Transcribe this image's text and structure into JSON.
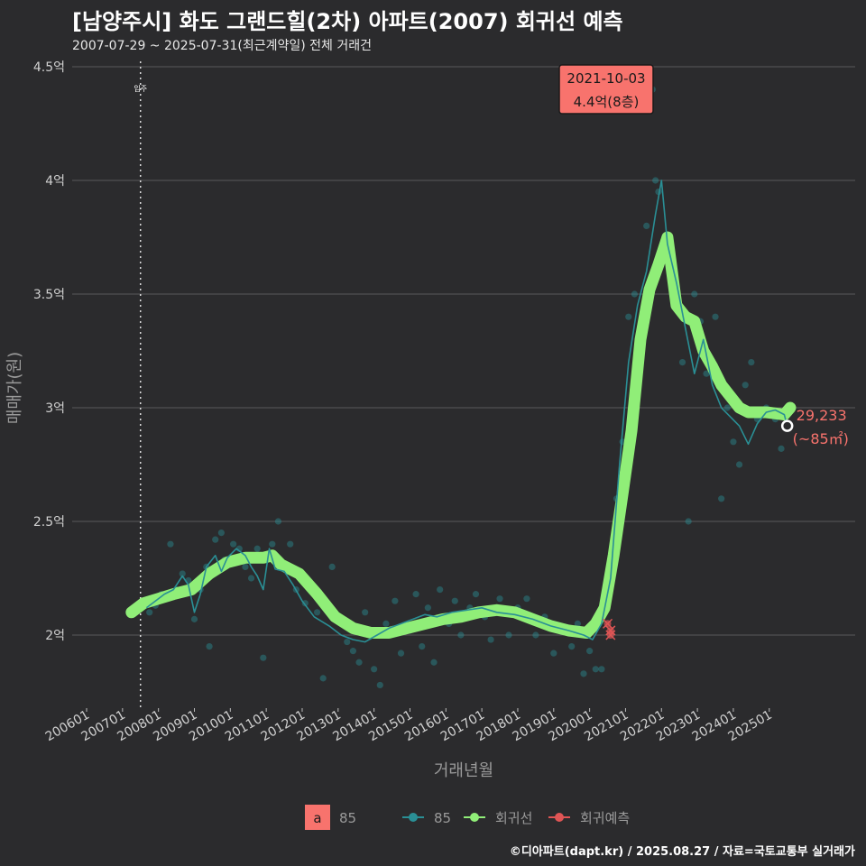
{
  "header": {
    "title": "[남양주시] 화도 그랜드힐(2차) 아파트(2007) 회귀선 예측",
    "subtitle": "2007-07-29 ~ 2025-07-31(최근계약일) 전체 거래건"
  },
  "caption": "©디아파트(dapt.kr) / 2025.08.27 / 자료=국토교통부 실거래가",
  "colors": {
    "background": "#2b2b2d",
    "grid": "#5a5a5c",
    "series_85": "#2a8f95",
    "regression": "#90ee78",
    "forecast": "#e05555",
    "annotation_fill": "#f8736d"
  },
  "annotations": {
    "peak_date": "2021-10-03",
    "peak_price": "4.4억(8층)",
    "last_price": "29,233",
    "last_area": "(~85㎡)",
    "movein_label": "입주"
  },
  "legend": {
    "box_letter": "a",
    "box_label": "85",
    "items": [
      {
        "label": "85",
        "color": "#2a8f95"
      },
      {
        "label": "회귀선",
        "color": "#90ee78"
      },
      {
        "label": "회귀예측",
        "color": "#e05555"
      }
    ]
  },
  "chart_data": {
    "type": "line",
    "title": "[남양주시] 화도 그랜드힐(2차) 아파트(2007) 회귀선 예측",
    "xlabel": "거래년월",
    "ylabel": "매매가(원)",
    "x_range": [
      "2006-01",
      "2025-08"
    ],
    "ylim": [
      1.7,
      4.5
    ],
    "y_ticks": [
      2,
      2.5,
      3,
      3.5,
      4,
      4.5
    ],
    "y_tick_labels": [
      "2억",
      "2.5억",
      "3억",
      "3.5억",
      "4억",
      "4.5억"
    ],
    "x_ticks": [
      "2006-01",
      "2007-01",
      "2008-01",
      "2009-01",
      "2010-01",
      "2011-01",
      "2012-01",
      "2013-01",
      "2014-01",
      "2015-01",
      "2016-01",
      "2017-01",
      "2018-01",
      "2019-01",
      "2020-01",
      "2021-01",
      "2022-01",
      "2023-01",
      "2024-01",
      "2025-01"
    ],
    "x_tick_labels": [
      "200601",
      "200701",
      "200801",
      "200901",
      "201001",
      "201101",
      "201201",
      "201301",
      "201401",
      "201501",
      "201601",
      "201701",
      "201801",
      "201901",
      "202001",
      "202101",
      "202201",
      "202301",
      "202401",
      "202501"
    ],
    "grid": true,
    "legend_position": "bottom",
    "movein_date": "2007-07",
    "series": [
      {
        "name": "85",
        "kind": "monthly-average-line",
        "points": [
          [
            "2007-09",
            2.12
          ],
          [
            "2007-12",
            2.15
          ],
          [
            "2008-03",
            2.18
          ],
          [
            "2008-06",
            2.2
          ],
          [
            "2008-09",
            2.26
          ],
          [
            "2008-11",
            2.22
          ],
          [
            "2009-01",
            2.1
          ],
          [
            "2009-03",
            2.18
          ],
          [
            "2009-05",
            2.3
          ],
          [
            "2009-08",
            2.35
          ],
          [
            "2009-10",
            2.28
          ],
          [
            "2009-12",
            2.34
          ],
          [
            "2010-03",
            2.38
          ],
          [
            "2010-06",
            2.35
          ],
          [
            "2010-08",
            2.3
          ],
          [
            "2010-10",
            2.26
          ],
          [
            "2010-12",
            2.2
          ],
          [
            "2011-02",
            2.38
          ],
          [
            "2011-04",
            2.29
          ],
          [
            "2011-07",
            2.28
          ],
          [
            "2011-10",
            2.22
          ],
          [
            "2012-01",
            2.15
          ],
          [
            "2012-05",
            2.08
          ],
          [
            "2012-10",
            2.04
          ],
          [
            "2013-02",
            2.0
          ],
          [
            "2013-06",
            1.98
          ],
          [
            "2013-10",
            1.97
          ],
          [
            "2014-02",
            2.0
          ],
          [
            "2014-06",
            2.03
          ],
          [
            "2014-10",
            2.05
          ],
          [
            "2015-02",
            2.07
          ],
          [
            "2015-06",
            2.09
          ],
          [
            "2015-10",
            2.08
          ],
          [
            "2016-03",
            2.1
          ],
          [
            "2016-08",
            2.11
          ],
          [
            "2017-01",
            2.12
          ],
          [
            "2017-06",
            2.1
          ],
          [
            "2017-12",
            2.09
          ],
          [
            "2018-06",
            2.07
          ],
          [
            "2018-12",
            2.04
          ],
          [
            "2019-06",
            2.02
          ],
          [
            "2019-11",
            2.0
          ],
          [
            "2020-02",
            1.98
          ],
          [
            "2020-05",
            2.05
          ],
          [
            "2020-08",
            2.25
          ],
          [
            "2020-11",
            2.75
          ],
          [
            "2021-02",
            3.2
          ],
          [
            "2021-05",
            3.45
          ],
          [
            "2021-08",
            3.6
          ],
          [
            "2021-11",
            3.85
          ],
          [
            "2022-01",
            4.0
          ],
          [
            "2022-03",
            3.72
          ],
          [
            "2022-06",
            3.55
          ],
          [
            "2022-09",
            3.35
          ],
          [
            "2022-12",
            3.15
          ],
          [
            "2023-03",
            3.3
          ],
          [
            "2023-06",
            3.1
          ],
          [
            "2023-09",
            3.0
          ],
          [
            "2023-12",
            2.96
          ],
          [
            "2024-03",
            2.92
          ],
          [
            "2024-06",
            2.84
          ],
          [
            "2024-09",
            2.93
          ],
          [
            "2024-12",
            2.98
          ],
          [
            "2025-03",
            2.99
          ],
          [
            "2025-06",
            2.97
          ],
          [
            "2025-07",
            2.92
          ]
        ]
      },
      {
        "name": "회귀선",
        "kind": "regression",
        "points": [
          [
            "2007-04",
            2.1
          ],
          [
            "2007-08",
            2.14
          ],
          [
            "2008-01",
            2.16
          ],
          [
            "2008-06",
            2.18
          ],
          [
            "2008-12",
            2.2
          ],
          [
            "2009-06",
            2.27
          ],
          [
            "2009-12",
            2.32
          ],
          [
            "2010-06",
            2.34
          ],
          [
            "2010-12",
            2.34
          ],
          [
            "2011-03",
            2.35
          ],
          [
            "2011-06",
            2.31
          ],
          [
            "2011-12",
            2.27
          ],
          [
            "2012-06",
            2.18
          ],
          [
            "2012-12",
            2.08
          ],
          [
            "2013-06",
            2.03
          ],
          [
            "2013-12",
            2.01
          ],
          [
            "2014-06",
            2.01
          ],
          [
            "2014-12",
            2.03
          ],
          [
            "2015-06",
            2.05
          ],
          [
            "2015-12",
            2.07
          ],
          [
            "2016-06",
            2.08
          ],
          [
            "2016-12",
            2.1
          ],
          [
            "2017-06",
            2.11
          ],
          [
            "2017-12",
            2.1
          ],
          [
            "2018-06",
            2.07
          ],
          [
            "2018-12",
            2.04
          ],
          [
            "2019-06",
            2.02
          ],
          [
            "2019-12",
            2.01
          ],
          [
            "2020-03",
            2.05
          ],
          [
            "2020-06",
            2.12
          ],
          [
            "2020-09",
            2.35
          ],
          [
            "2020-12",
            2.62
          ],
          [
            "2021-03",
            2.9
          ],
          [
            "2021-06",
            3.3
          ],
          [
            "2021-09",
            3.52
          ],
          [
            "2021-12",
            3.63
          ],
          [
            "2022-03",
            3.75
          ],
          [
            "2022-06",
            3.45
          ],
          [
            "2022-09",
            3.4
          ],
          [
            "2022-12",
            3.38
          ],
          [
            "2023-03",
            3.25
          ],
          [
            "2023-06",
            3.18
          ],
          [
            "2023-09",
            3.1
          ],
          [
            "2023-12",
            3.05
          ],
          [
            "2024-03",
            3.0
          ],
          [
            "2024-06",
            2.98
          ],
          [
            "2024-12",
            2.98
          ],
          [
            "2025-06",
            2.97
          ],
          [
            "2025-08",
            3.0
          ]
        ]
      },
      {
        "name": "회귀예측",
        "kind": "forecast",
        "points": [
          [
            "2020-07",
            2.05
          ],
          [
            "2020-08",
            2.02
          ],
          [
            "2020-08",
            2.0
          ]
        ]
      }
    ],
    "transactions": [
      [
        "2007-10",
        2.1
      ],
      [
        "2007-12",
        2.13
      ],
      [
        "2008-02",
        2.18
      ],
      [
        "2008-05",
        2.4
      ],
      [
        "2008-07",
        2.2
      ],
      [
        "2008-09",
        2.27
      ],
      [
        "2008-11",
        2.24
      ],
      [
        "2009-01",
        2.07
      ],
      [
        "2009-03",
        2.2
      ],
      [
        "2009-05",
        2.3
      ],
      [
        "2009-06",
        1.95
      ],
      [
        "2009-08",
        2.42
      ],
      [
        "2009-10",
        2.45
      ],
      [
        "2009-11",
        2.33
      ],
      [
        "2010-02",
        2.4
      ],
      [
        "2010-04",
        2.38
      ],
      [
        "2010-06",
        2.3
      ],
      [
        "2010-08",
        2.25
      ],
      [
        "2010-10",
        2.38
      ],
      [
        "2010-12",
        1.9
      ],
      [
        "2011-03",
        2.4
      ],
      [
        "2011-05",
        2.5
      ],
      [
        "2011-07",
        2.3
      ],
      [
        "2011-09",
        2.4
      ],
      [
        "2011-11",
        2.2
      ],
      [
        "2012-02",
        2.14
      ],
      [
        "2012-06",
        2.1
      ],
      [
        "2012-08",
        1.81
      ],
      [
        "2012-11",
        2.3
      ],
      [
        "2013-02",
        2.05
      ],
      [
        "2013-04",
        1.97
      ],
      [
        "2013-06",
        1.93
      ],
      [
        "2013-08",
        1.88
      ],
      [
        "2013-10",
        2.1
      ],
      [
        "2014-01",
        1.85
      ],
      [
        "2014-03",
        1.78
      ],
      [
        "2014-05",
        2.05
      ],
      [
        "2014-08",
        2.15
      ],
      [
        "2014-10",
        1.92
      ],
      [
        "2015-01",
        2.02
      ],
      [
        "2015-03",
        2.18
      ],
      [
        "2015-05",
        1.95
      ],
      [
        "2015-07",
        2.12
      ],
      [
        "2015-09",
        1.88
      ],
      [
        "2015-11",
        2.2
      ],
      [
        "2016-02",
        2.05
      ],
      [
        "2016-04",
        2.15
      ],
      [
        "2016-06",
        2.0
      ],
      [
        "2016-09",
        2.12
      ],
      [
        "2016-11",
        2.18
      ],
      [
        "2017-02",
        2.08
      ],
      [
        "2017-04",
        1.98
      ],
      [
        "2017-07",
        2.16
      ],
      [
        "2017-10",
        2.0
      ],
      [
        "2018-01",
        2.12
      ],
      [
        "2018-04",
        2.16
      ],
      [
        "2018-07",
        2.0
      ],
      [
        "2018-10",
        2.08
      ],
      [
        "2019-01",
        1.92
      ],
      [
        "2019-04",
        2.02
      ],
      [
        "2019-07",
        1.95
      ],
      [
        "2019-09",
        2.05
      ],
      [
        "2019-11",
        1.83
      ],
      [
        "2020-01",
        1.93
      ],
      [
        "2020-03",
        1.85
      ],
      [
        "2020-05",
        1.85
      ],
      [
        "2020-06",
        2.1
      ],
      [
        "2020-08",
        2.3
      ],
      [
        "2020-10",
        2.6
      ],
      [
        "2020-12",
        2.85
      ],
      [
        "2021-02",
        3.4
      ],
      [
        "2021-04",
        3.5
      ],
      [
        "2021-06",
        3.3
      ],
      [
        "2021-08",
        3.8
      ],
      [
        "2021-10",
        4.4
      ],
      [
        "2021-11",
        4.0
      ],
      [
        "2021-12",
        3.95
      ],
      [
        "2022-02",
        3.75
      ],
      [
        "2022-04",
        3.6
      ],
      [
        "2022-06",
        3.5
      ],
      [
        "2022-08",
        3.2
      ],
      [
        "2022-10",
        2.5
      ],
      [
        "2022-12",
        3.5
      ],
      [
        "2023-02",
        3.38
      ],
      [
        "2023-04",
        3.15
      ],
      [
        "2023-07",
        3.4
      ],
      [
        "2023-09",
        2.6
      ],
      [
        "2023-11",
        3.0
      ],
      [
        "2024-01",
        2.85
      ],
      [
        "2024-03",
        2.75
      ],
      [
        "2024-05",
        3.1
      ],
      [
        "2024-07",
        3.2
      ],
      [
        "2024-09",
        2.95
      ],
      [
        "2024-12",
        3.0
      ],
      [
        "2025-03",
        2.95
      ],
      [
        "2025-05",
        2.82
      ],
      [
        "2025-07",
        2.92
      ]
    ]
  }
}
